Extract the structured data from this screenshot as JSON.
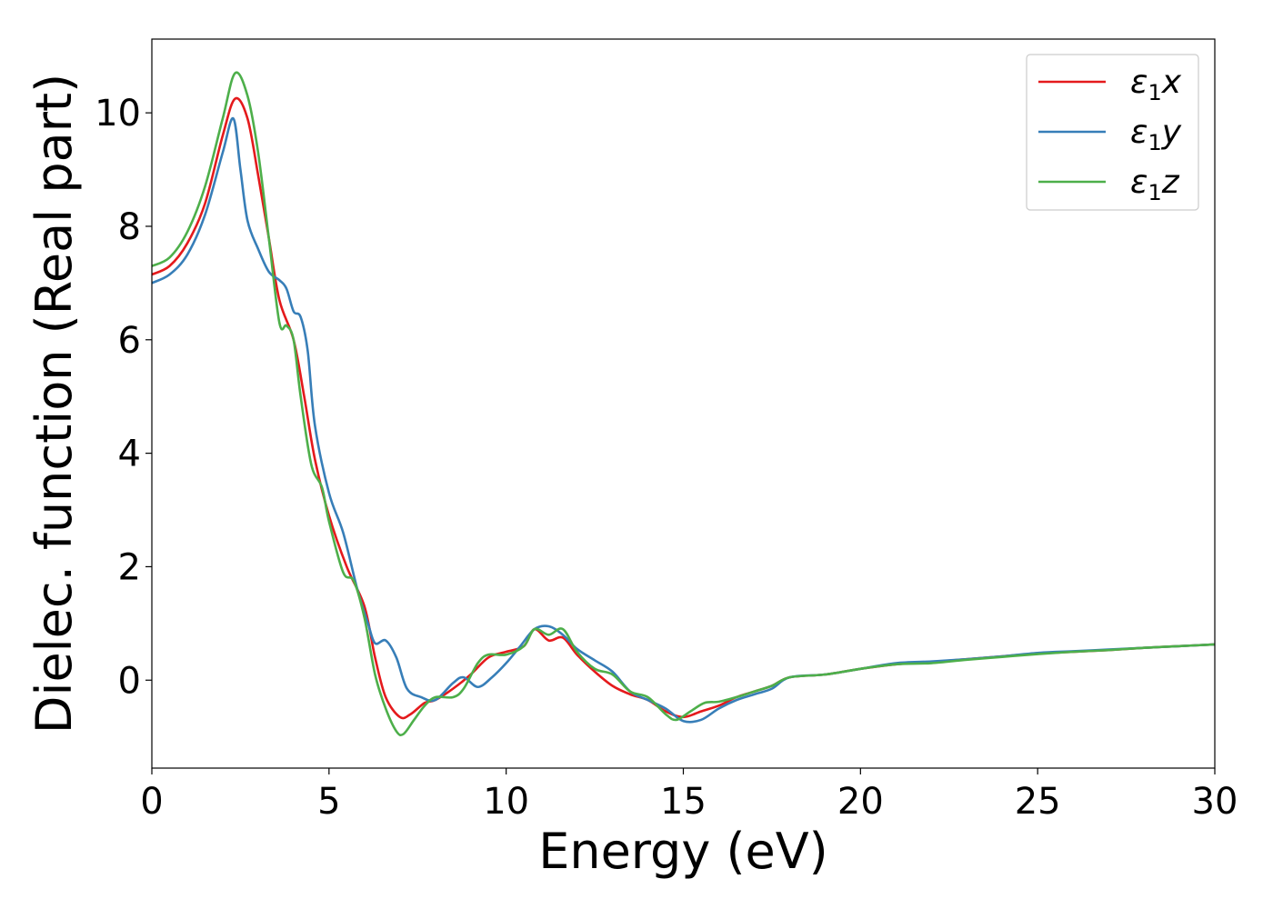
{
  "chart_data": {
    "type": "line",
    "xlabel": "Energy (eV)",
    "ylabel": "Dielec. function (Real part)",
    "xlim": [
      0,
      30
    ],
    "ylim": [
      -1.55,
      11.3
    ],
    "xticks": [
      0,
      5,
      10,
      15,
      20,
      25,
      30
    ],
    "yticks": [
      0,
      2,
      4,
      6,
      8,
      10
    ],
    "grid": false,
    "legend_position": "top-right",
    "series": [
      {
        "name": "ε1x",
        "legend": {
          "base": "ε",
          "sub": "1",
          "var": "x"
        },
        "color": "#e41a1c",
        "x": [
          0,
          0.5,
          1.0,
          1.5,
          2.0,
          2.35,
          2.7,
          3.0,
          3.3,
          3.6,
          4.0,
          4.3,
          4.6,
          5.0,
          5.5,
          6.0,
          6.3,
          6.6,
          7.0,
          7.3,
          7.7,
          8.0,
          8.5,
          9.0,
          9.5,
          10.0,
          10.5,
          10.8,
          11.2,
          11.6,
          12.0,
          12.5,
          13.0,
          13.5,
          14.0,
          14.5,
          15.0,
          15.5,
          16.0,
          16.5,
          17.0,
          17.5,
          18.0,
          19.0,
          20.0,
          21.0,
          22.0,
          23.0,
          24.0,
          25.0,
          26.0,
          27.0,
          28.0,
          29.0,
          30.0
        ],
        "y": [
          7.15,
          7.3,
          7.7,
          8.4,
          9.6,
          10.25,
          9.9,
          8.9,
          7.8,
          6.7,
          6.0,
          5.0,
          3.9,
          2.9,
          2.0,
          1.3,
          0.4,
          -0.3,
          -0.65,
          -0.6,
          -0.4,
          -0.35,
          -0.15,
          0.1,
          0.4,
          0.5,
          0.6,
          0.9,
          0.7,
          0.75,
          0.45,
          0.15,
          -0.1,
          -0.25,
          -0.35,
          -0.55,
          -0.65,
          -0.55,
          -0.45,
          -0.3,
          -0.2,
          -0.1,
          0.05,
          0.1,
          0.2,
          0.28,
          0.32,
          0.37,
          0.42,
          0.47,
          0.5,
          0.53,
          0.57,
          0.6,
          0.63
        ]
      },
      {
        "name": "ε1y",
        "legend": {
          "base": "ε",
          "sub": "1",
          "var": "y"
        },
        "color": "#377eb8",
        "x": [
          0,
          0.5,
          1.0,
          1.5,
          2.0,
          2.3,
          2.5,
          2.7,
          3.0,
          3.3,
          3.6,
          3.8,
          4.0,
          4.2,
          4.4,
          4.6,
          5.0,
          5.4,
          5.8,
          6.1,
          6.3,
          6.6,
          6.9,
          7.2,
          7.6,
          8.0,
          8.5,
          8.8,
          9.2,
          9.6,
          10.0,
          10.4,
          10.8,
          11.2,
          11.6,
          12.0,
          12.5,
          13.0,
          13.5,
          14.0,
          14.5,
          15.0,
          15.5,
          16.0,
          16.5,
          17.0,
          17.5,
          18.0,
          19.0,
          20.0,
          21.0,
          22.0,
          23.0,
          24.0,
          25.0,
          26.0,
          27.0,
          28.0,
          29.0,
          30.0
        ],
        "y": [
          7.0,
          7.15,
          7.5,
          8.2,
          9.3,
          9.9,
          9.0,
          8.1,
          7.6,
          7.2,
          7.05,
          6.9,
          6.5,
          6.4,
          5.8,
          4.5,
          3.3,
          2.6,
          1.6,
          1.0,
          0.65,
          0.7,
          0.4,
          -0.15,
          -0.3,
          -0.35,
          -0.05,
          0.05,
          -0.12,
          0.05,
          0.3,
          0.6,
          0.9,
          0.95,
          0.8,
          0.55,
          0.35,
          0.15,
          -0.2,
          -0.35,
          -0.5,
          -0.72,
          -0.7,
          -0.5,
          -0.35,
          -0.25,
          -0.15,
          0.05,
          0.1,
          0.2,
          0.3,
          0.33,
          0.37,
          0.42,
          0.48,
          0.51,
          0.54,
          0.57,
          0.6,
          0.63
        ]
      },
      {
        "name": "ε1z",
        "legend": {
          "base": "ε",
          "sub": "1",
          "var": "z"
        },
        "color": "#4daf4a",
        "x": [
          0,
          0.5,
          1.0,
          1.5,
          2.0,
          2.35,
          2.7,
          3.0,
          3.3,
          3.6,
          3.8,
          4.0,
          4.2,
          4.5,
          4.8,
          5.0,
          5.4,
          5.7,
          6.0,
          6.3,
          6.6,
          6.9,
          7.1,
          7.4,
          7.7,
          8.0,
          8.5,
          8.8,
          9.2,
          9.5,
          10.0,
          10.5,
          10.8,
          11.2,
          11.6,
          12.0,
          12.5,
          13.0,
          13.5,
          14.0,
          14.5,
          14.8,
          15.2,
          15.6,
          16.0,
          16.5,
          17.0,
          17.5,
          18.0,
          19.0,
          20.0,
          21.0,
          22.0,
          23.0,
          24.0,
          25.0,
          26.0,
          27.0,
          28.0,
          29.0,
          30.0
        ],
        "y": [
          7.3,
          7.45,
          7.9,
          8.7,
          9.9,
          10.7,
          10.3,
          9.3,
          7.8,
          6.3,
          6.25,
          6.0,
          5.0,
          3.8,
          3.4,
          2.8,
          1.9,
          1.75,
          1.1,
          0.1,
          -0.5,
          -0.9,
          -0.95,
          -0.7,
          -0.45,
          -0.3,
          -0.3,
          -0.15,
          0.3,
          0.45,
          0.45,
          0.6,
          0.9,
          0.8,
          0.9,
          0.5,
          0.2,
          0.1,
          -0.2,
          -0.3,
          -0.6,
          -0.7,
          -0.55,
          -0.4,
          -0.38,
          -0.3,
          -0.2,
          -0.1,
          0.05,
          0.1,
          0.2,
          0.28,
          0.3,
          0.36,
          0.41,
          0.46,
          0.5,
          0.53,
          0.57,
          0.6,
          0.63
        ]
      }
    ]
  }
}
